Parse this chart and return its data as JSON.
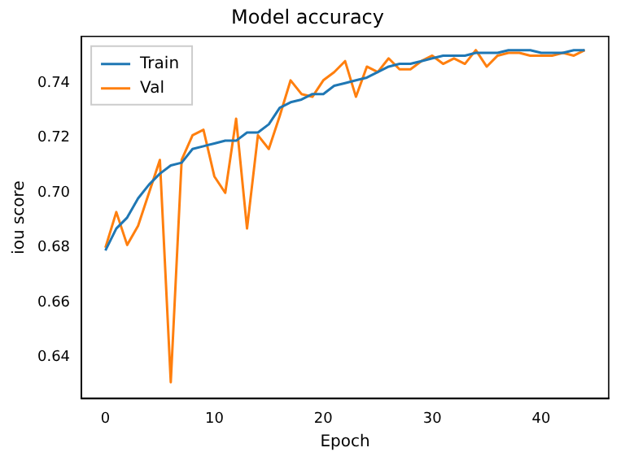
{
  "chart_data": {
    "type": "line",
    "title": "Model accuracy",
    "xlabel": "Epoch",
    "ylabel": "iou score",
    "x": [
      0,
      1,
      2,
      3,
      4,
      5,
      6,
      7,
      8,
      9,
      10,
      11,
      12,
      13,
      14,
      15,
      16,
      17,
      18,
      19,
      20,
      21,
      22,
      23,
      24,
      25,
      26,
      27,
      28,
      29,
      30,
      31,
      32,
      33,
      34,
      35,
      36,
      37,
      38,
      39,
      40,
      41,
      42,
      43,
      44
    ],
    "series": [
      {
        "name": "Train",
        "color": "#1f77b4",
        "values": [
          0.679,
          0.687,
          0.691,
          0.698,
          0.703,
          0.707,
          0.71,
          0.711,
          0.716,
          0.717,
          0.718,
          0.719,
          0.719,
          0.722,
          0.722,
          0.725,
          0.731,
          0.733,
          0.734,
          0.736,
          0.736,
          0.739,
          0.74,
          0.741,
          0.742,
          0.744,
          0.746,
          0.747,
          0.747,
          0.748,
          0.749,
          0.75,
          0.75,
          0.75,
          0.751,
          0.751,
          0.751,
          0.752,
          0.752,
          0.752,
          0.751,
          0.751,
          0.751,
          0.752,
          0.752
        ]
      },
      {
        "name": "Val",
        "color": "#ff7f0e",
        "values": [
          0.68,
          0.693,
          0.681,
          0.688,
          0.7,
          0.712,
          0.631,
          0.712,
          0.721,
          0.723,
          0.706,
          0.7,
          0.727,
          0.687,
          0.721,
          0.716,
          0.728,
          0.741,
          0.736,
          0.735,
          0.741,
          0.744,
          0.748,
          0.735,
          0.746,
          0.744,
          0.749,
          0.745,
          0.745,
          0.748,
          0.75,
          0.747,
          0.749,
          0.747,
          0.752,
          0.746,
          0.75,
          0.751,
          0.751,
          0.75,
          0.75,
          0.75,
          0.751,
          0.75,
          0.752
        ]
      }
    ],
    "xlim": [
      -2.2,
      46.2
    ],
    "xticks": [
      0,
      10,
      20,
      30,
      40
    ],
    "ylim": [
      0.625,
      0.757
    ],
    "yticks": [
      {
        "value": 0.64,
        "label": "0.64"
      },
      {
        "value": 0.66,
        "label": "0.66"
      },
      {
        "value": 0.68,
        "label": "0.68"
      },
      {
        "value": 0.7,
        "label": "0.70"
      },
      {
        "value": 0.72,
        "label": "0.72"
      },
      {
        "value": 0.74,
        "label": "0.74"
      }
    ],
    "legend": "top left",
    "grid": false,
    "marker": "none",
    "line_style": "solid"
  }
}
